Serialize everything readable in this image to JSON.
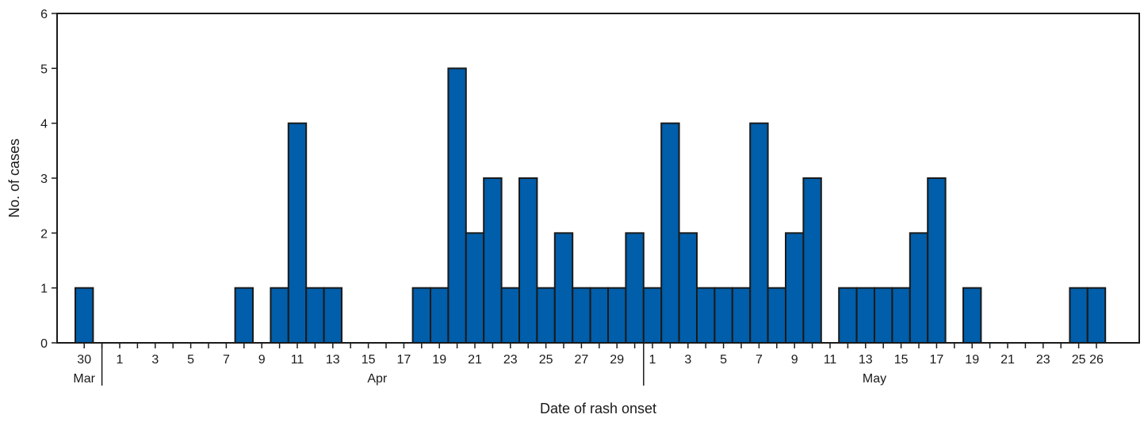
{
  "chart_data": {
    "type": "bar",
    "ylabel": "No. of cases",
    "xlabel": "Date of rash onset",
    "ylim": [
      0,
      6
    ],
    "yticks": [
      0,
      1,
      2,
      3,
      4,
      5,
      6
    ],
    "grid": false,
    "legend": "none",
    "bar_color": "#005eaa",
    "months": [
      {
        "label": "Mar",
        "from": "Mar 30",
        "to": "Mar 30"
      },
      {
        "label": "Apr",
        "from": "Apr 1",
        "to": "Apr 30"
      },
      {
        "label": "May",
        "from": "May 1",
        "to": "May 26"
      }
    ],
    "x_tick_labels": [
      "30",
      "1",
      "3",
      "5",
      "7",
      "9",
      "11",
      "13",
      "15",
      "17",
      "19",
      "21",
      "23",
      "25",
      "27",
      "29",
      "1",
      "3",
      "5",
      "7",
      "9",
      "11",
      "13",
      "15",
      "17",
      "19",
      "21",
      "23",
      "25",
      "26"
    ],
    "x_tick_dates": [
      "Mar 30",
      "Apr 1",
      "Apr 3",
      "Apr 5",
      "Apr 7",
      "Apr 9",
      "Apr 11",
      "Apr 13",
      "Apr 15",
      "Apr 17",
      "Apr 19",
      "Apr 21",
      "Apr 23",
      "Apr 25",
      "Apr 27",
      "Apr 29",
      "May 1",
      "May 3",
      "May 5",
      "May 7",
      "May 9",
      "May 11",
      "May 13",
      "May 15",
      "May 17",
      "May 19",
      "May 21",
      "May 23",
      "May 25",
      "May 26"
    ],
    "categories": [
      "Mar 30",
      "Mar 31",
      "Apr 1",
      "Apr 2",
      "Apr 3",
      "Apr 4",
      "Apr 5",
      "Apr 6",
      "Apr 7",
      "Apr 8",
      "Apr 9",
      "Apr 10",
      "Apr 11",
      "Apr 12",
      "Apr 13",
      "Apr 14",
      "Apr 15",
      "Apr 16",
      "Apr 17",
      "Apr 18",
      "Apr 19",
      "Apr 20",
      "Apr 21",
      "Apr 22",
      "Apr 23",
      "Apr 24",
      "Apr 25",
      "Apr 26",
      "Apr 27",
      "Apr 28",
      "Apr 29",
      "Apr 30",
      "May 1",
      "May 2",
      "May 3",
      "May 4",
      "May 5",
      "May 6",
      "May 7",
      "May 8",
      "May 9",
      "May 10",
      "May 11",
      "May 12",
      "May 13",
      "May 14",
      "May 15",
      "May 16",
      "May 17",
      "May 18",
      "May 19",
      "May 20",
      "May 21",
      "May 22",
      "May 23",
      "May 24",
      "May 25",
      "May 26"
    ],
    "values": [
      1,
      0,
      0,
      0,
      0,
      0,
      0,
      0,
      0,
      1,
      0,
      1,
      4,
      1,
      1,
      0,
      0,
      0,
      0,
      1,
      1,
      5,
      2,
      3,
      1,
      3,
      1,
      2,
      1,
      1,
      1,
      2,
      1,
      4,
      2,
      1,
      1,
      1,
      4,
      1,
      2,
      3,
      0,
      1,
      1,
      1,
      1,
      2,
      3,
      0,
      1,
      0,
      0,
      0,
      0,
      0,
      1,
      1
    ]
  }
}
